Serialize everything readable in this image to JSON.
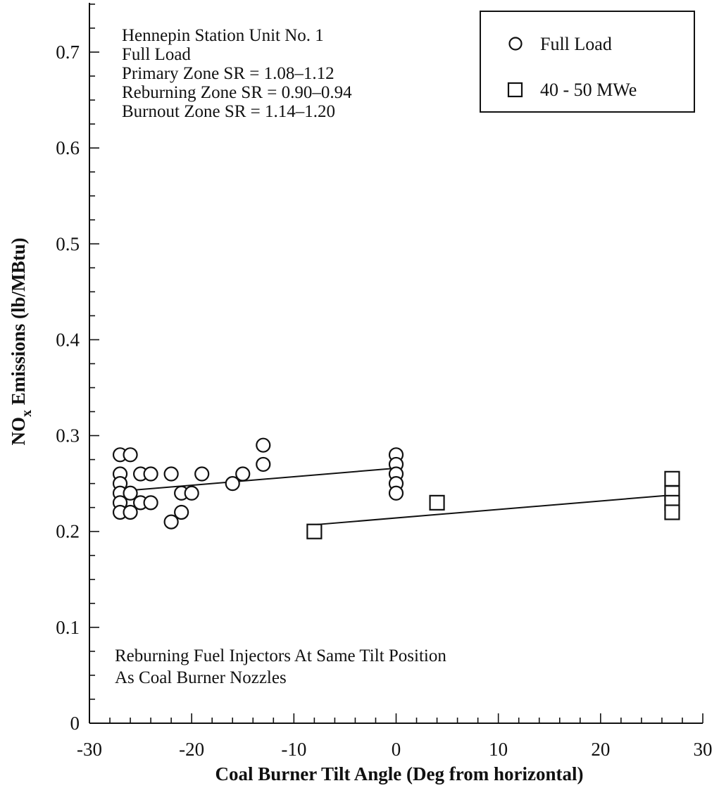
{
  "chart_data": {
    "type": "scatter",
    "xlabel": "Coal Burner Tilt Angle (Deg from horizontal)",
    "ylabel_main": "NO",
    "ylabel_sub": "x",
    "ylabel_rest": " Emissions (lb/MBtu)",
    "xlim": [
      -30,
      30
    ],
    "ylim": [
      0,
      0.75
    ],
    "x_ticks": [
      -30,
      -20,
      -10,
      0,
      10,
      20,
      30
    ],
    "x_tick_labels": [
      "-30",
      "-20",
      "-10",
      "0",
      "10",
      "20",
      "30"
    ],
    "y_ticks": [
      0,
      0.1,
      0.2,
      0.3,
      0.4,
      0.5,
      0.6,
      0.7
    ],
    "y_tick_labels": [
      "0",
      "0.1",
      "0.2",
      "0.3",
      "0.4",
      "0.5",
      "0.6",
      "0.7"
    ],
    "grid": false,
    "legend_position": "top-right",
    "annotation_top": [
      "Hennepin Station Unit No. 1",
      "Full Load",
      "Primary Zone SR = 1.08–1.12",
      "Reburning Zone SR =  0.90–0.94",
      "Burnout Zone SR = 1.14–1.20"
    ],
    "annotation_bottom": [
      "Reburning Fuel Injectors At Same Tilt Position",
      "As Coal Burner Nozzles"
    ],
    "series": [
      {
        "name": "Full Load",
        "marker": "circle",
        "points": [
          [
            -27,
            0.28
          ],
          [
            -27,
            0.26
          ],
          [
            -27,
            0.25
          ],
          [
            -27,
            0.24
          ],
          [
            -27,
            0.23
          ],
          [
            -27,
            0.22
          ],
          [
            -26,
            0.28
          ],
          [
            -26,
            0.24
          ],
          [
            -26,
            0.22
          ],
          [
            -25,
            0.26
          ],
          [
            -25,
            0.23
          ],
          [
            -24,
            0.26
          ],
          [
            -24,
            0.23
          ],
          [
            -22,
            0.26
          ],
          [
            -22,
            0.21
          ],
          [
            -21,
            0.24
          ],
          [
            -21,
            0.22
          ],
          [
            -20,
            0.24
          ],
          [
            -19,
            0.26
          ],
          [
            -16,
            0.25
          ],
          [
            -15,
            0.26
          ],
          [
            -13,
            0.29
          ],
          [
            -13,
            0.27
          ],
          [
            0,
            0.28
          ],
          [
            0,
            0.27
          ],
          [
            0,
            0.26
          ],
          [
            0,
            0.25
          ],
          [
            0,
            0.24
          ]
        ],
        "fit": [
          [
            -27,
            0.242
          ],
          [
            0,
            0.266
          ]
        ]
      },
      {
        "name": "40 - 50 MWe",
        "marker": "square",
        "points": [
          [
            -8,
            0.2
          ],
          [
            4,
            0.23
          ],
          [
            27,
            0.255
          ],
          [
            27,
            0.24
          ],
          [
            27,
            0.23
          ],
          [
            27,
            0.22
          ]
        ],
        "fit": [
          [
            -8,
            0.207
          ],
          [
            27,
            0.238
          ]
        ]
      }
    ]
  }
}
